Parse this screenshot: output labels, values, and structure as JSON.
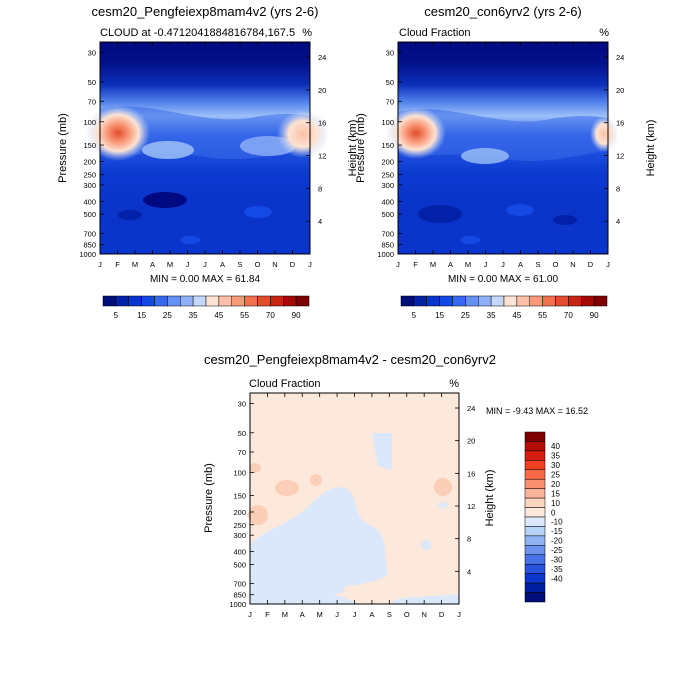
{
  "chart_data": [
    {
      "type": "heatmap",
      "title": "cesm20_Pengfeiexp8mam4v2 (yrs 2-6)",
      "left_label": "CLOUD at -0.4712041884816784,167.5",
      "right_label": "%",
      "xlabel": "",
      "ylabel": "Pressure (mb)",
      "ylabel_right": "Height (km)",
      "x_ticks": [
        "J",
        "F",
        "M",
        "A",
        "M",
        "J",
        "J",
        "A",
        "S",
        "O",
        "N",
        "D",
        "J"
      ],
      "y_ticks": [
        "30",
        "50",
        "70",
        "100",
        "150",
        "200",
        "250",
        "300",
        "400",
        "500",
        "700",
        "850",
        "1000"
      ],
      "y_ticks_right": [
        "24",
        "20",
        "16",
        "12",
        "8",
        "4"
      ],
      "stats": "MIN =  0.00 MAX = 61.84",
      "features": [
        {
          "month": 1.0,
          "pressure": 130,
          "value": 60
        },
        {
          "month": 11.6,
          "pressure": 130,
          "value": 45
        },
        {
          "month": 2.5,
          "pressure": 380,
          "value": 2
        }
      ]
    },
    {
      "type": "heatmap",
      "title": "cesm20_con6yrv2 (yrs 2-6)",
      "left_label": "Cloud Fraction",
      "right_label": "%",
      "xlabel": "",
      "ylabel": "Pressure (mb)",
      "ylabel_right": "Height (km)",
      "x_ticks": [
        "J",
        "F",
        "M",
        "A",
        "M",
        "J",
        "J",
        "A",
        "S",
        "O",
        "N",
        "D",
        "J"
      ],
      "y_ticks": [
        "30",
        "50",
        "70",
        "100",
        "150",
        "200",
        "250",
        "300",
        "400",
        "500",
        "700",
        "850",
        "1000"
      ],
      "y_ticks_right": [
        "24",
        "20",
        "16",
        "12",
        "8",
        "4"
      ],
      "stats": "MIN =  0.00 MAX = 61.00",
      "features": [
        {
          "month": 1.0,
          "pressure": 130,
          "value": 58
        },
        {
          "month": 11.8,
          "pressure": 130,
          "value": 40
        },
        {
          "month": 2.5,
          "pressure": 420,
          "value": 3
        }
      ]
    },
    {
      "type": "heatmap",
      "title": "cesm20_Pengfeiexp8mam4v2 - cesm20_con6yrv2",
      "left_label": "Cloud Fraction",
      "right_label": "%",
      "xlabel": "",
      "ylabel": "Pressure (mb)",
      "ylabel_right": "Height (km)",
      "x_ticks": [
        "J",
        "F",
        "M",
        "A",
        "M",
        "J",
        "J",
        "A",
        "S",
        "O",
        "N",
        "D",
        "J"
      ],
      "y_ticks": [
        "30",
        "50",
        "70",
        "100",
        "150",
        "200",
        "250",
        "300",
        "400",
        "500",
        "700",
        "850",
        "1000"
      ],
      "y_ticks_right": [
        "24",
        "20",
        "16",
        "12",
        "8",
        "4"
      ],
      "stats": "MIN =  -9.43 MAX =  16.52"
    }
  ],
  "colorbar_top": {
    "colors": [
      "#000e7a",
      "#0221a8",
      "#0535cc",
      "#1549e6",
      "#3768f0",
      "#6590f5",
      "#8fb0f8",
      "#c4d8fb",
      "#fde3d3",
      "#fbc0a6",
      "#f99a7a",
      "#f3704f",
      "#e44d2c",
      "#c62611",
      "#a30a05",
      "#7f0000"
    ],
    "labels": [
      "5",
      "15",
      "25",
      "35",
      "45",
      "55",
      "70",
      "90"
    ]
  },
  "colorbar_diff": {
    "colors": [
      "#7f0000",
      "#b20e06",
      "#d61c0e",
      "#f0401f",
      "#f76a45",
      "#f99170",
      "#fbb497",
      "#fcd5bf",
      "#fde9dc",
      "#dbe8fb",
      "#b9d2f8",
      "#90b3f3",
      "#6b92ee",
      "#4872e7",
      "#2853dd",
      "#0b37cb",
      "#001f9e",
      "#000e7a"
    ],
    "labels": [
      "40",
      "35",
      "30",
      "25",
      "20",
      "15",
      "10",
      "0",
      "-10",
      "-15",
      "-20",
      "-25",
      "-30",
      "-35",
      "-40"
    ]
  },
  "colors": {
    "deep_blue": "#02118a",
    "diff_pos": "#fde9dc",
    "diff_neg": "#dbe8fb"
  }
}
